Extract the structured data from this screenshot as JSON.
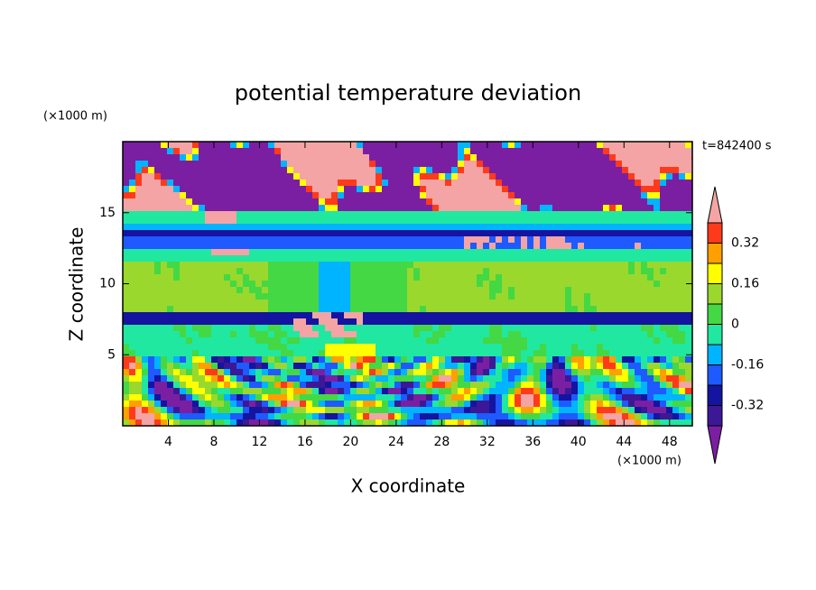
{
  "chart_data": {
    "type": "contour",
    "title": "potential temperature deviation",
    "x_label": "X coordinate",
    "y_label": "Z coordinate",
    "x_unit": "(×1000 m)",
    "y_unit": "(×1000 m)",
    "annotation": "t=842400 s",
    "xlim": [
      0,
      50
    ],
    "ylim": [
      0,
      20
    ],
    "xticks": [
      4,
      8,
      12,
      16,
      20,
      24,
      28,
      32,
      36,
      40,
      44,
      48
    ],
    "yticks": [
      5,
      10,
      15
    ],
    "levels": [
      -0.4,
      -0.32,
      -0.24,
      -0.16,
      -0.08,
      0,
      0.08,
      0.16,
      0.24,
      0.32,
      0.4
    ],
    "colorbar_ticks": [
      0.32,
      0.16,
      0,
      -0.16,
      -0.32
    ],
    "colors": [
      "#7b1fa2",
      "#3c1896",
      "#1414a0",
      "#1e5aff",
      "#00b4ff",
      "#20e8a0",
      "#44d844",
      "#9ad82e",
      "#ffff00",
      "#ffa000",
      "#ff3a1a",
      "#f4a4a4"
    ]
  }
}
